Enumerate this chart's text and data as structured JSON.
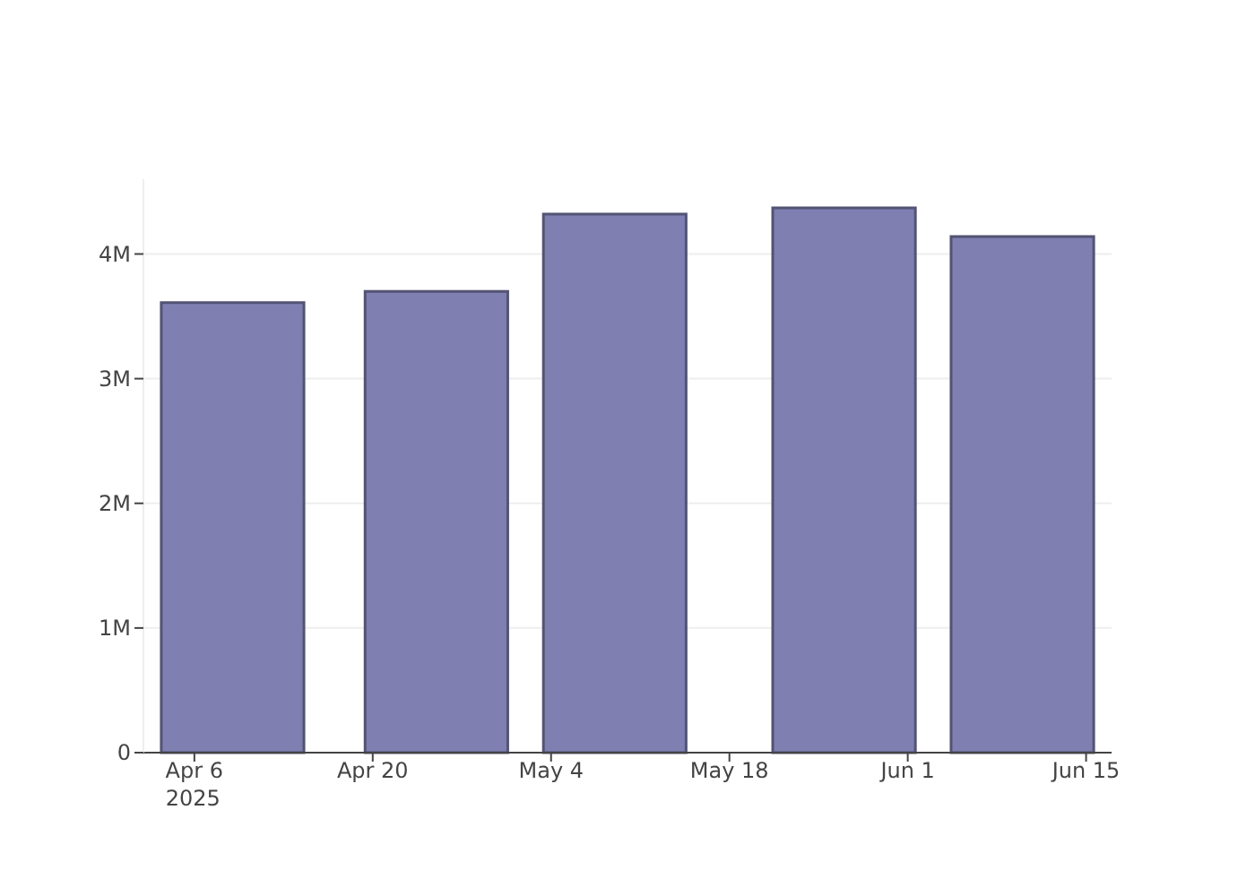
{
  "chart_data": {
    "type": "bar",
    "x": [
      "2025-04-09",
      "2025-04-25",
      "2025-05-09",
      "2025-05-27",
      "2025-06-10"
    ],
    "values": [
      3610000,
      3700000,
      4320000,
      4370000,
      4140000
    ],
    "color": "#7f7fb2",
    "xlim": [
      "2025-04-02",
      "2025-06-17"
    ],
    "xticks": [
      {
        "value": "2025-04-06",
        "label": "Apr 6\n2025"
      },
      {
        "value": "2025-04-20",
        "label": "Apr 20"
      },
      {
        "value": "2025-05-04",
        "label": "May 4"
      },
      {
        "value": "2025-05-18",
        "label": "May 18"
      },
      {
        "value": "2025-06-01",
        "label": "Jun 1"
      },
      {
        "value": "2025-06-15",
        "label": "Jun 15"
      }
    ],
    "ylim": [
      0,
      4600000
    ],
    "yticks": [
      {
        "value": 0,
        "label": "0"
      },
      {
        "value": 1000000,
        "label": "1M"
      },
      {
        "value": 2000000,
        "label": "2M"
      },
      {
        "value": 3000000,
        "label": "3M"
      },
      {
        "value": 4000000,
        "label": "4M"
      }
    ],
    "grid": "y"
  }
}
